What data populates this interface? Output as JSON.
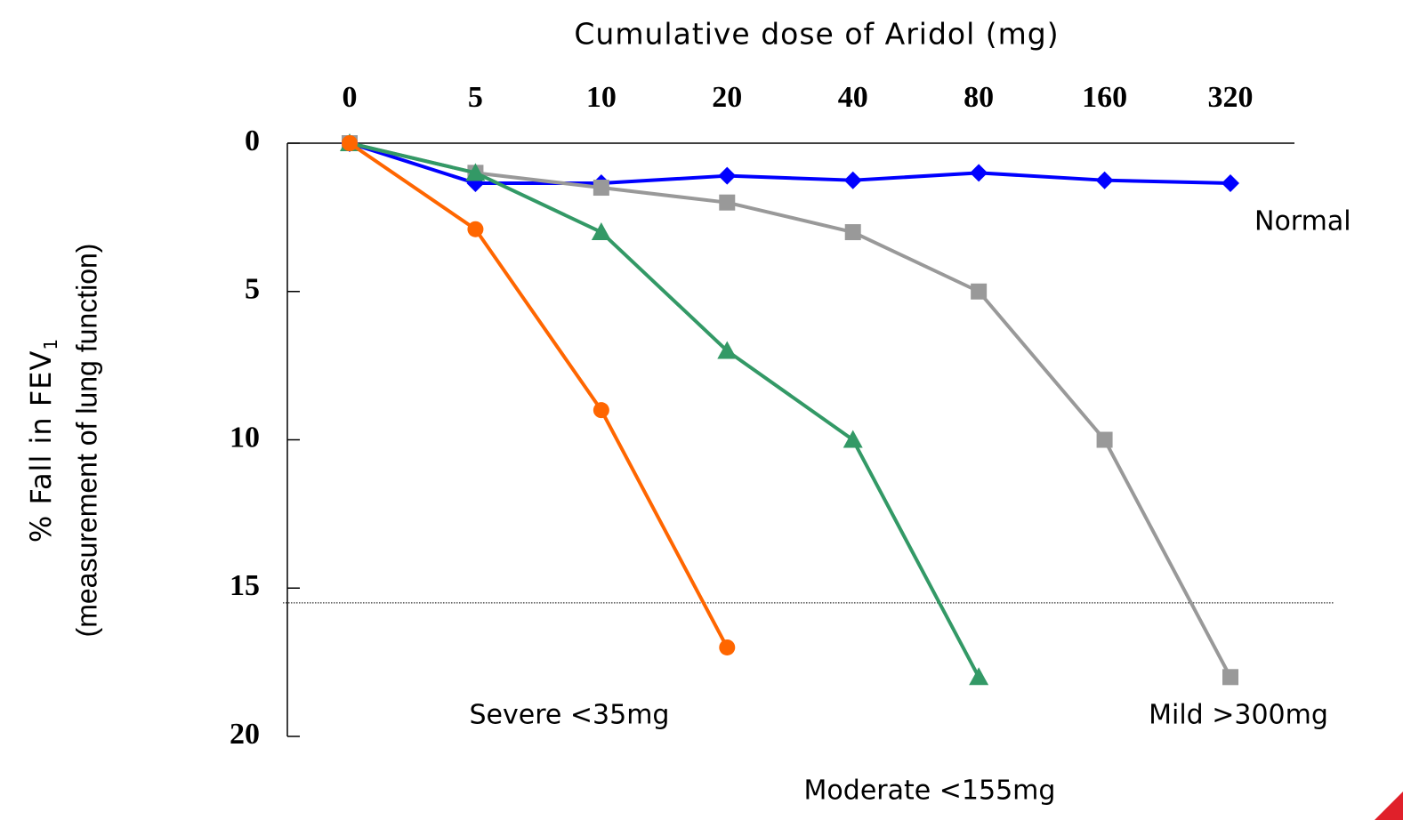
{
  "chart_data": {
    "type": "line",
    "title": "Cumulative dose of Aridol (mg)",
    "ylabel": "% Fall in FEV",
    "ylabel_subscript": "1",
    "ylabel_note": "(measurement of lung function)",
    "categories": [
      "0",
      "5",
      "10",
      "20",
      "40",
      "80",
      "160",
      "320"
    ],
    "ylim": [
      0,
      20
    ],
    "yticks": [
      0,
      5,
      10,
      15,
      20
    ],
    "y_inverted": true,
    "grid": false,
    "reference_line": 15.5,
    "series": [
      {
        "name": "Normal",
        "color": "#0000ff",
        "marker": "diamond",
        "values": [
          0,
          1.35,
          1.35,
          1.1,
          1.25,
          1.0,
          1.25,
          1.35
        ]
      },
      {
        "name": "Mild >300mg",
        "color": "#999999",
        "marker": "square",
        "values": [
          0,
          1.0,
          1.5,
          2.0,
          3.0,
          5.0,
          10,
          18
        ]
      },
      {
        "name": "Moderate <155mg",
        "color": "#339966",
        "marker": "triangle",
        "values": [
          0,
          1.0,
          3.0,
          7.0,
          10,
          18,
          null,
          null
        ]
      },
      {
        "name": "Severe <35mg",
        "color": "#ff6600",
        "marker": "circle",
        "values": [
          0,
          2.9,
          9.0,
          17,
          null,
          null,
          null,
          null
        ]
      }
    ]
  }
}
